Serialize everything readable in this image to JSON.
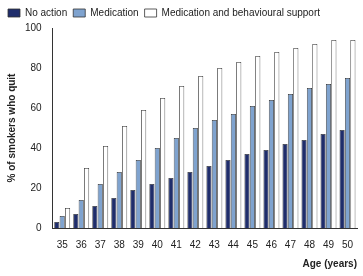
{
  "chart_data": {
    "type": "bar",
    "x_label": "Age (years)",
    "y_label": "% of smokers who quit",
    "categories": [
      "35",
      "36",
      "37",
      "38",
      "39",
      "40",
      "41",
      "42",
      "43",
      "44",
      "45",
      "46",
      "47",
      "48",
      "49",
      "50"
    ],
    "series": [
      {
        "name": "No action",
        "color": "#1f2d6b",
        "values": [
          3,
          7,
          11,
          15,
          19,
          22,
          25,
          28,
          31,
          34,
          37,
          39,
          42,
          44,
          47,
          49
        ]
      },
      {
        "name": "Medication",
        "color": "#7fa3cf",
        "values": [
          6,
          14,
          22,
          28,
          34,
          40,
          45,
          50,
          54,
          57,
          61,
          64,
          67,
          70,
          72,
          75
        ]
      },
      {
        "name": "Medication and behavioural support",
        "color": "#ffffff",
        "values": [
          10,
          30,
          41,
          51,
          59,
          65,
          71,
          76,
          80,
          83,
          86,
          88,
          90,
          92,
          94,
          94
        ]
      }
    ],
    "ylim": [
      0,
      100
    ],
    "yticks": [
      0,
      20,
      40,
      60,
      80,
      100
    ],
    "grid": false,
    "legend": "top"
  }
}
